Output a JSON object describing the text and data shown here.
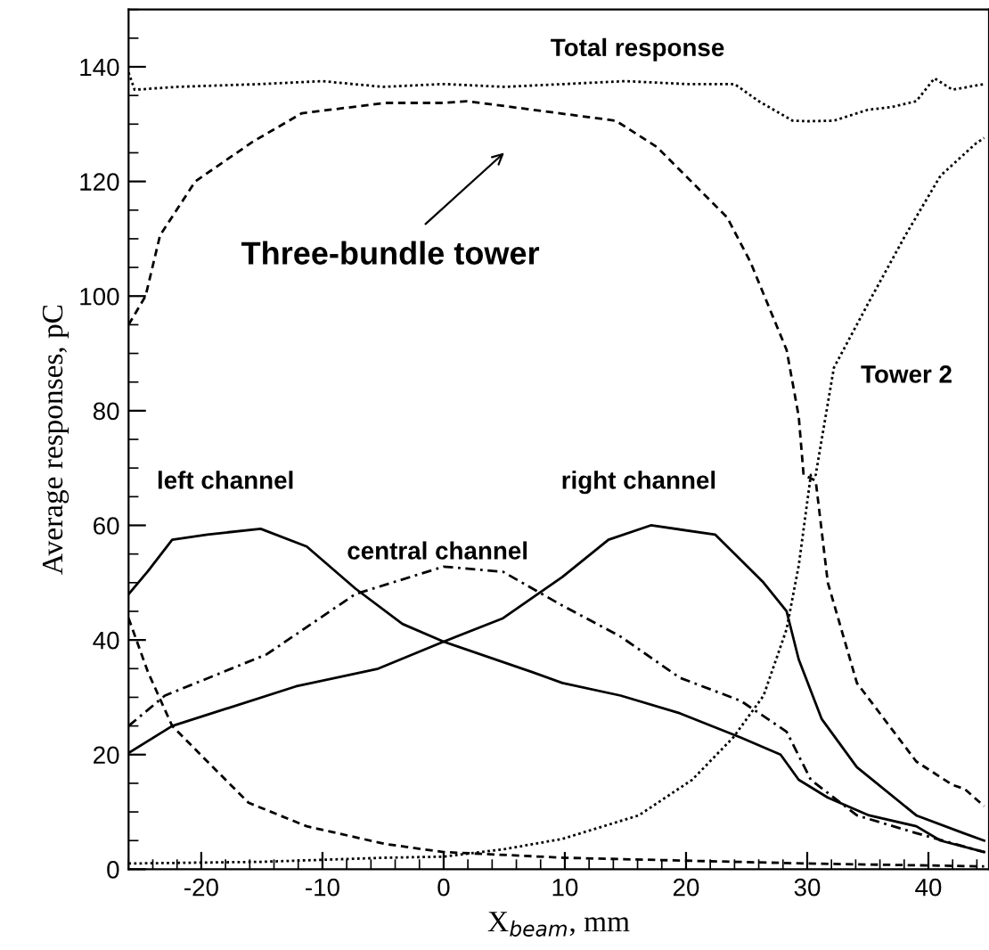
{
  "chart_data": {
    "type": "line",
    "xlabel": "X$_{beam}$, mm",
    "ylabel": "Average responses, pC",
    "xlim": [
      -26,
      45
    ],
    "ylim": [
      0,
      150
    ],
    "xticks": [
      -20,
      -10,
      0,
      10,
      20,
      30,
      40
    ],
    "yticks": [
      0,
      20,
      40,
      60,
      80,
      100,
      120,
      140
    ],
    "grid": false,
    "legend": false,
    "annotations": [
      "Three-bundle tower"
    ],
    "series": [
      {
        "name": "Total response",
        "color": "#000000",
        "line_style": "dotted",
        "x": [
          -26,
          -25.5,
          -22,
          -15,
          -10,
          -5,
          0,
          5,
          10,
          15,
          20,
          24,
          26,
          28.8,
          30,
          32.2,
          35,
          37,
          39,
          40.5,
          42,
          44.6
        ],
        "values": [
          139,
          136,
          136.5,
          137,
          137.5,
          136.5,
          137,
          136.5,
          137,
          137.5,
          137,
          137,
          134,
          130.6,
          130.5,
          130.6,
          132.5,
          133,
          134,
          138,
          136,
          137
        ]
      },
      {
        "color": "#000000",
        "line_style": "dashed",
        "x": [
          -26,
          -24.6,
          -23.4,
          -20.5,
          -15.7,
          -11.7,
          -4.8,
          0,
          1.9,
          6.3,
          14.2,
          17.6,
          23.4,
          25.3,
          28.3,
          29.3,
          29.7,
          30.7,
          31.7,
          34.1,
          39,
          42,
          43,
          44.6
        ],
        "values": [
          95,
          100,
          110.6,
          120,
          127,
          131.9,
          133.7,
          133.7,
          134,
          132.8,
          130.6,
          126,
          113.7,
          106,
          90.6,
          79,
          68.8,
          67.8,
          50,
          32.5,
          18.8,
          14.7,
          14,
          11
        ]
      },
      {
        "name": "Tower 2",
        "color": "#000000",
        "line_style": "dotted",
        "x": [
          -26,
          -15,
          -5,
          0,
          5,
          9.8,
          16.1,
          20.5,
          23.9,
          26.4,
          28.3,
          29.3,
          30.3,
          30.7,
          32.2,
          35.1,
          38.1,
          41,
          43.9,
          44.6
        ],
        "values": [
          1,
          1.3,
          2,
          2.2,
          3.5,
          5.3,
          9.4,
          15.6,
          23,
          30.3,
          41.9,
          53,
          68.8,
          68.8,
          87.5,
          99,
          110.6,
          121,
          126.6,
          127.6
        ]
      },
      {
        "name": "left channel",
        "color": "#000000",
        "line_style": "solid",
        "x": [
          -26,
          -24.4,
          -22.4,
          -19.5,
          -15.1,
          -11.3,
          -7.3,
          -3.4,
          0,
          7.3,
          9.8,
          14.6,
          19.5,
          24.5,
          27.8,
          29.3,
          31.7,
          35.1,
          39,
          41,
          44.6
        ],
        "values": [
          48,
          52,
          57.5,
          58.4,
          59.4,
          56.3,
          49,
          42.8,
          39.7,
          34.4,
          32.5,
          30.3,
          27.2,
          23,
          20,
          15.6,
          12.5,
          9.4,
          7.5,
          5,
          3
        ]
      },
      {
        "name": "central channel",
        "color": "#000000",
        "line_style": "dashdot",
        "x": [
          -26,
          -23,
          -14.6,
          -7.3,
          0,
          4.9,
          9.8,
          14.6,
          19.5,
          24.5,
          28.3,
          30.3,
          34.1,
          39,
          44.6
        ],
        "values": [
          25,
          30.3,
          37.5,
          48,
          52.8,
          51.9,
          46,
          40.6,
          33.4,
          29.4,
          24,
          15.6,
          9.4,
          6.3,
          3
        ]
      },
      {
        "name": "right channel",
        "color": "#000000",
        "line_style": "solid",
        "x": [
          -26,
          -22.4,
          -12.2,
          -5.4,
          0,
          4.9,
          9.8,
          13.6,
          17.1,
          22.4,
          26.4,
          28.3,
          29.3,
          31.2,
          34.1,
          39,
          42.9,
          44.6
        ],
        "values": [
          20.3,
          25,
          31.9,
          35,
          39.7,
          43.8,
          51,
          57.5,
          60,
          58.4,
          50,
          45,
          36.6,
          26.2,
          17.8,
          9.4,
          6.3,
          5
        ]
      },
      {
        "color": "#000000",
        "line_style": "dashed",
        "x": [
          -26,
          -24.4,
          -22.4,
          -19.5,
          -16.1,
          -11.3,
          -4.8,
          0,
          10,
          20,
          30,
          44.6
        ],
        "values": [
          43.8,
          34.4,
          25,
          18.8,
          11.6,
          7.5,
          4.4,
          3,
          2,
          1.5,
          1,
          0.5
        ]
      }
    ]
  }
}
